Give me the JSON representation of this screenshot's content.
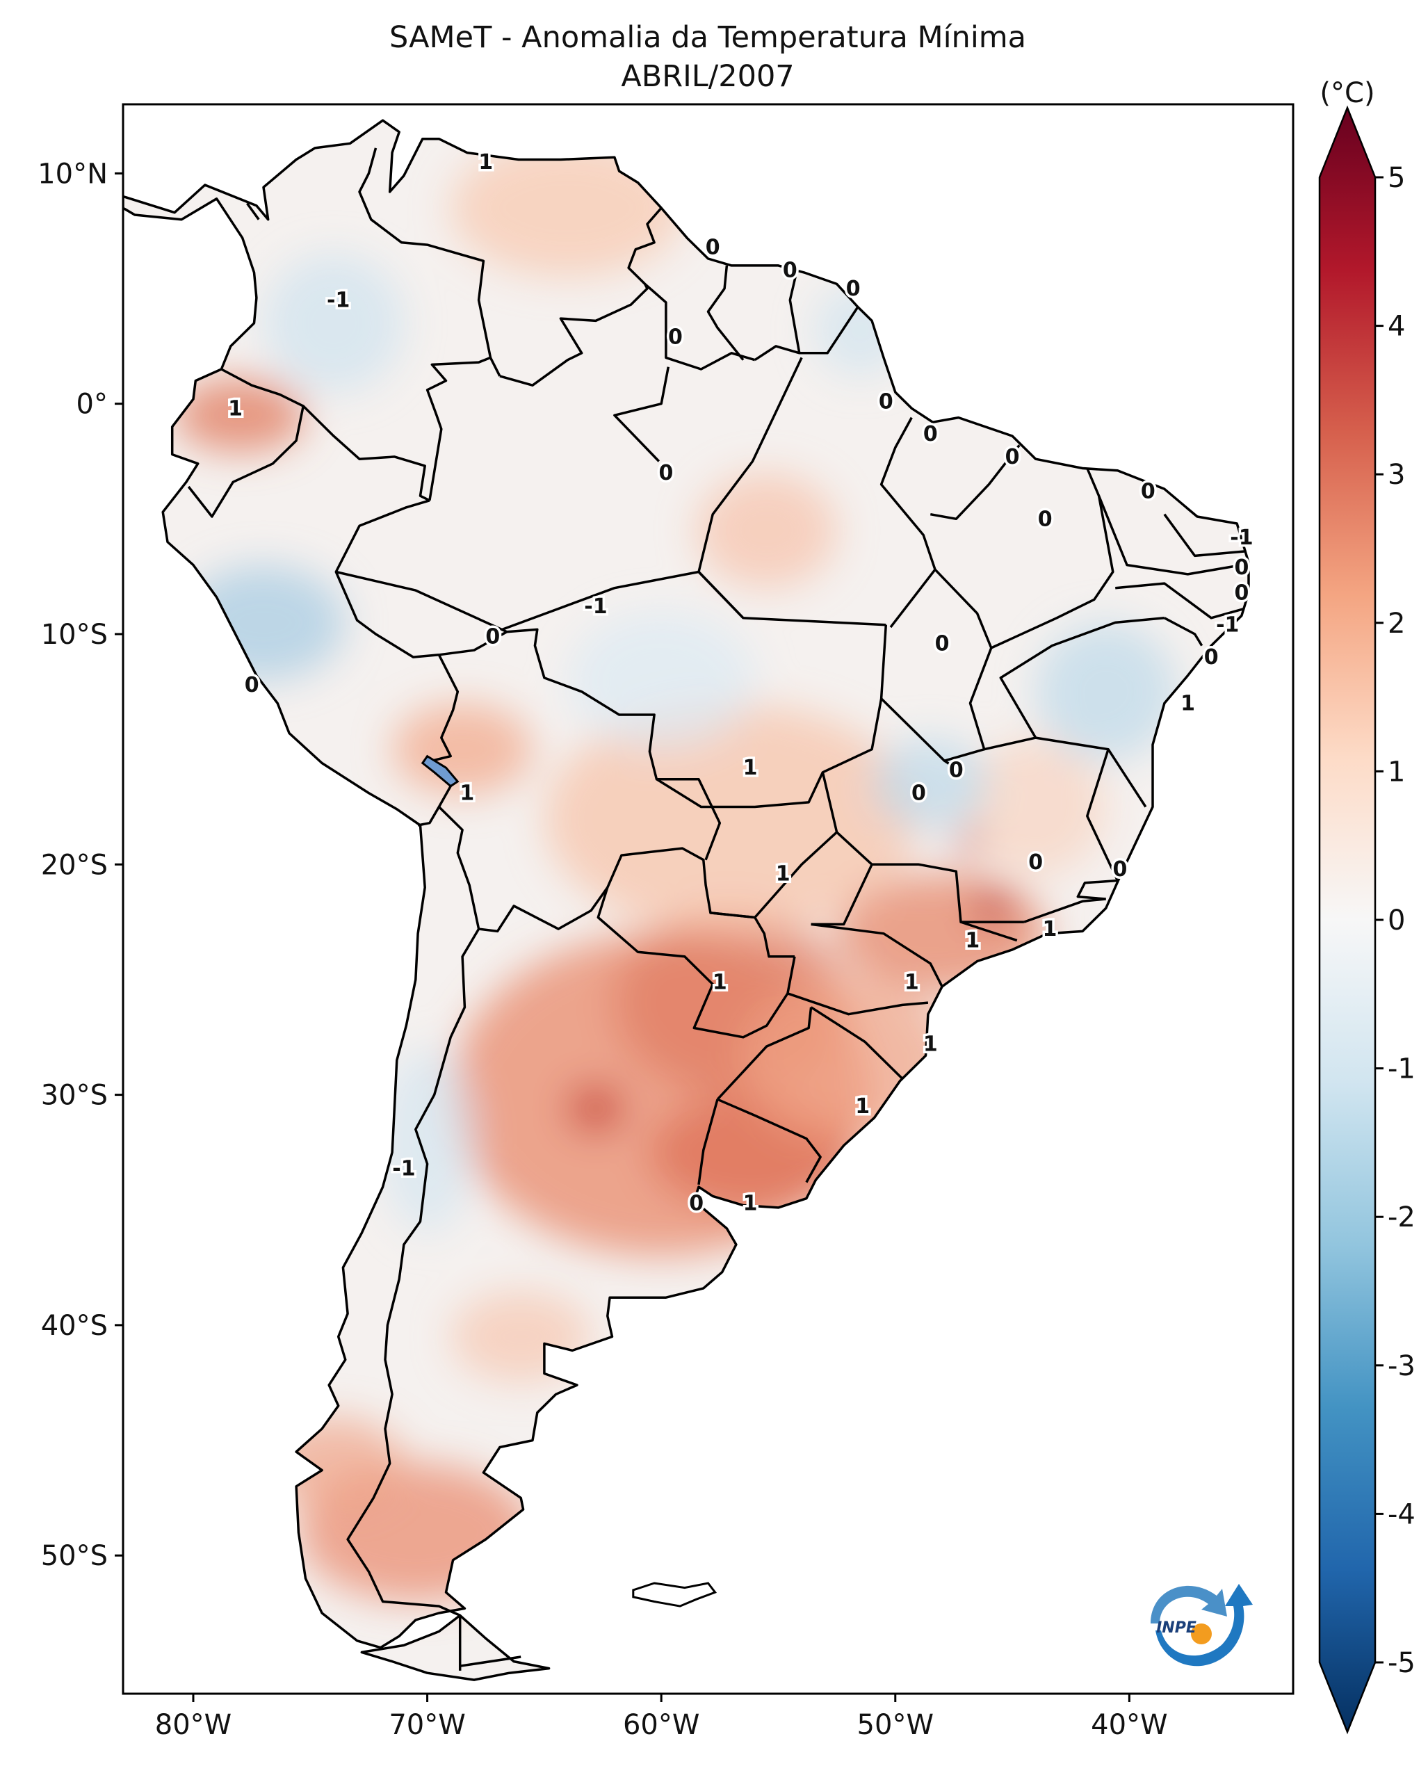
{
  "title": {
    "line1": "SAMeT - Anomalia da Temperatura Mínima",
    "line2": "ABRIL/2007"
  },
  "axes": {
    "lon_ticks": [
      "80°W",
      "70°W",
      "60°W",
      "50°W",
      "40°W"
    ],
    "lat_ticks": [
      "10°N",
      "0°",
      "10°S",
      "20°S",
      "30°S",
      "40°S",
      "50°S"
    ],
    "lon_range": [
      -83,
      -33
    ],
    "lat_range": [
      -56,
      13
    ]
  },
  "colorbar": {
    "unit": "(°C)",
    "ticks": [
      "5",
      "4",
      "3",
      "2",
      "1",
      "0",
      "-1",
      "-2",
      "-3",
      "-4",
      "-5"
    ],
    "range": [
      -5,
      5
    ],
    "colormap": "RdBu_r",
    "colors": {
      "max": "#67001f",
      "warm": "#d6604d",
      "light_warm": "#f4a582",
      "neutral": "#f7f7f7",
      "light_cool": "#92c5de",
      "cool": "#4393c3",
      "min": "#053061"
    }
  },
  "contour_labels": [
    {
      "text": "1",
      "lon": -67.5,
      "lat": 10.5
    },
    {
      "text": "0",
      "lon": -57.8,
      "lat": 6.8
    },
    {
      "text": "0",
      "lon": -54.5,
      "lat": 5.8
    },
    {
      "text": "0",
      "lon": -51.8,
      "lat": 5.0
    },
    {
      "text": "-1",
      "lon": -73.8,
      "lat": 4.5
    },
    {
      "text": "0",
      "lon": -59.4,
      "lat": 2.9
    },
    {
      "text": "1",
      "lon": -78.2,
      "lat": -0.2
    },
    {
      "text": "0",
      "lon": -50.4,
      "lat": 0.1
    },
    {
      "text": "0",
      "lon": -48.5,
      "lat": -1.3
    },
    {
      "text": "0",
      "lon": -59.8,
      "lat": -3.0
    },
    {
      "text": "0",
      "lon": -45.0,
      "lat": -2.3
    },
    {
      "text": "0",
      "lon": -39.2,
      "lat": -3.8
    },
    {
      "text": "0",
      "lon": -43.6,
      "lat": -5.0
    },
    {
      "text": "-1",
      "lon": -35.2,
      "lat": -5.8
    },
    {
      "text": "0",
      "lon": -35.2,
      "lat": -7.1
    },
    {
      "text": "0",
      "lon": -35.2,
      "lat": -8.2
    },
    {
      "text": "-1",
      "lon": -62.8,
      "lat": -8.8
    },
    {
      "text": "-1",
      "lon": -35.8,
      "lat": -9.6
    },
    {
      "text": "0",
      "lon": -67.2,
      "lat": -10.1
    },
    {
      "text": "0",
      "lon": -48.0,
      "lat": -10.4
    },
    {
      "text": "0",
      "lon": -36.5,
      "lat": -11.0
    },
    {
      "text": "0",
      "lon": -77.5,
      "lat": -12.2
    },
    {
      "text": "1",
      "lon": -37.5,
      "lat": -13.0
    },
    {
      "text": "1",
      "lon": -56.2,
      "lat": -15.8
    },
    {
      "text": "0",
      "lon": -47.4,
      "lat": -15.9
    },
    {
      "text": "1",
      "lon": -68.3,
      "lat": -16.9
    },
    {
      "text": "0",
      "lon": -49.0,
      "lat": -16.9
    },
    {
      "text": "1",
      "lon": -54.8,
      "lat": -20.4
    },
    {
      "text": "0",
      "lon": -44.0,
      "lat": -19.9
    },
    {
      "text": "0",
      "lon": -40.4,
      "lat": -20.2
    },
    {
      "text": "1",
      "lon": -43.4,
      "lat": -22.8
    },
    {
      "text": "1",
      "lon": -46.7,
      "lat": -23.3
    },
    {
      "text": "1",
      "lon": -57.5,
      "lat": -25.1
    },
    {
      "text": "1",
      "lon": -49.3,
      "lat": -25.1
    },
    {
      "text": "1",
      "lon": -48.5,
      "lat": -27.8
    },
    {
      "text": "1",
      "lon": -51.4,
      "lat": -30.5
    },
    {
      "text": "-1",
      "lon": -71.0,
      "lat": -33.2
    },
    {
      "text": "0",
      "lon": -58.5,
      "lat": -34.7
    },
    {
      "text": "1",
      "lon": -56.2,
      "lat": -34.7
    }
  ],
  "anomaly_patches": [
    {
      "lon": -60.0,
      "lat": -30.0,
      "rx": 9,
      "ry": 7,
      "color": "#e8896b",
      "opacity": 0.75
    },
    {
      "lon": -57.0,
      "lat": -26.0,
      "rx": 5,
      "ry": 4,
      "color": "#e07a5f",
      "opacity": 0.7
    },
    {
      "lon": -56.0,
      "lat": -32.5,
      "rx": 4.5,
      "ry": 2.5,
      "color": "#dd7058",
      "opacity": 0.75
    },
    {
      "lon": -62.8,
      "lat": -30.6,
      "rx": 1.2,
      "ry": 1.0,
      "color": "#c94c42",
      "opacity": 0.85
    },
    {
      "lon": -48.0,
      "lat": -23.0,
      "rx": 4.5,
      "ry": 2.6,
      "color": "#e6876a",
      "opacity": 0.75
    },
    {
      "lon": -45.8,
      "lat": -21.8,
      "rx": 0.8,
      "ry": 0.6,
      "color": "#b2182b",
      "opacity": 0.85
    },
    {
      "lon": -46.8,
      "lat": -19.0,
      "rx": 0.6,
      "ry": 0.6,
      "color": "#c23a3a",
      "opacity": 0.8
    },
    {
      "lon": -52.0,
      "lat": -28.5,
      "rx": 4.5,
      "ry": 3.5,
      "color": "#f0a284",
      "opacity": 0.7
    },
    {
      "lon": -57.0,
      "lat": -18.0,
      "rx": 8,
      "ry": 5,
      "color": "#f6c2a6",
      "opacity": 0.7
    },
    {
      "lon": -68.5,
      "lat": -15.0,
      "rx": 3,
      "ry": 2,
      "color": "#f2a586",
      "opacity": 0.7
    },
    {
      "lon": -70.5,
      "lat": -49.0,
      "rx": 5,
      "ry": 3,
      "color": "#ea8e72",
      "opacity": 0.75
    },
    {
      "lon": -74.0,
      "lat": -46.0,
      "rx": 3,
      "ry": 2,
      "color": "#f0a488",
      "opacity": 0.7
    },
    {
      "lon": -78.0,
      "lat": -0.5,
      "rx": 2.8,
      "ry": 1.6,
      "color": "#e28167",
      "opacity": 0.8
    },
    {
      "lon": -64.0,
      "lat": 8.5,
      "rx": 5,
      "ry": 3,
      "color": "#f8c7ae",
      "opacity": 0.7
    },
    {
      "lon": -55.5,
      "lat": -5.5,
      "rx": 3,
      "ry": 2.5,
      "color": "#f7c2aa",
      "opacity": 0.7
    },
    {
      "lon": -44.0,
      "lat": -17.5,
      "rx": 3,
      "ry": 3,
      "color": "#f8cfb9",
      "opacity": 0.6
    },
    {
      "lon": -66.0,
      "lat": -40.5,
      "rx": 3,
      "ry": 2,
      "color": "#f6bfa5",
      "opacity": 0.6
    },
    {
      "lon": -77.0,
      "lat": -9.5,
      "rx": 3.5,
      "ry": 2.5,
      "color": "#a9cce3",
      "opacity": 0.75
    },
    {
      "lon": -74.0,
      "lat": 3.5,
      "rx": 3,
      "ry": 3,
      "color": "#cfe3f0",
      "opacity": 0.7
    },
    {
      "lon": -41.0,
      "lat": -12.5,
      "rx": 3,
      "ry": 3,
      "color": "#bcd8ea",
      "opacity": 0.7
    },
    {
      "lon": -48.5,
      "lat": -16.5,
      "rx": 2.5,
      "ry": 2,
      "color": "#bcd8ea",
      "opacity": 0.7
    },
    {
      "lon": -70.0,
      "lat": -32.0,
      "rx": 2,
      "ry": 4,
      "color": "#d4e6f1",
      "opacity": 0.7
    },
    {
      "lon": -60.0,
      "lat": -12.0,
      "rx": 4,
      "ry": 3,
      "color": "#dbeaf3",
      "opacity": 0.7
    },
    {
      "lon": -51.5,
      "lat": 3.2,
      "rx": 2,
      "ry": 2,
      "color": "#d0e4f0",
      "opacity": 0.7
    }
  ],
  "logo": {
    "text": "INPE"
  }
}
